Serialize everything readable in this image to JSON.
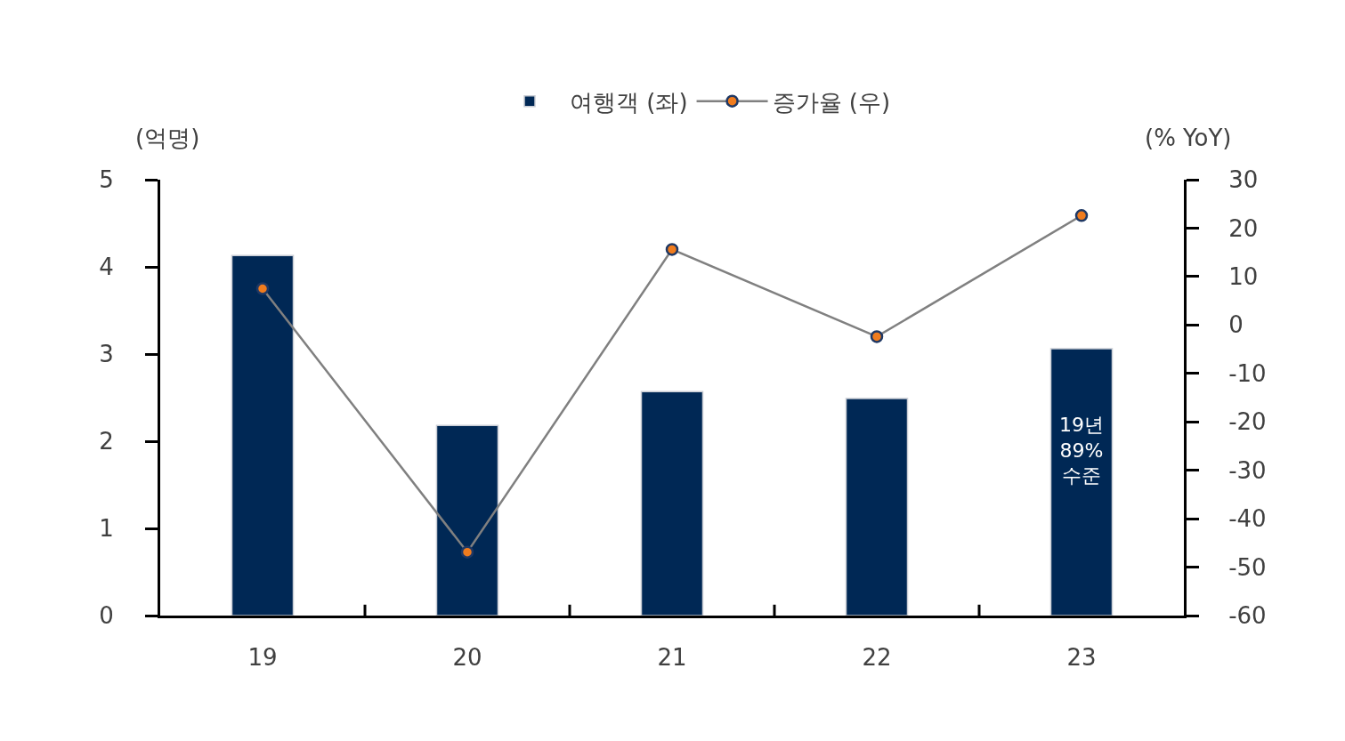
{
  "chart_data": {
    "type": "bar",
    "categories": [
      "19",
      "20",
      "21",
      "22",
      "23"
    ],
    "series": [
      {
        "name": "여행객 (좌)",
        "color": "#002855",
        "values": [
          4.13,
          2.18,
          2.57,
          2.49,
          3.06
        ]
      },
      {
        "name": "증가율 (우)",
        "type": "line",
        "axis": "y2",
        "color": "#808080",
        "colors": [
          "#f07c1e",
          "#f07c1e",
          "#f07c1e",
          "#f07c1e",
          "#f07c1e"
        ],
        "values": [
          7.5,
          -46.9,
          15.6,
          -2.4,
          22.6
        ]
      }
    ],
    "ylabel": "(억명)",
    "y2label": "(% YoY)",
    "ylim": [
      0,
      5
    ],
    "yticks": [
      0,
      1,
      2,
      3,
      4,
      5
    ],
    "y2lim": [
      -60,
      30
    ],
    "y2ticks": [
      -60,
      -50,
      -40,
      -30,
      -20,
      -10,
      0,
      10,
      20,
      30
    ],
    "annotations": [
      "19년\n89%\n수준"
    ],
    "legend": "top",
    "marker": "circle",
    "line_style": "solid"
  }
}
